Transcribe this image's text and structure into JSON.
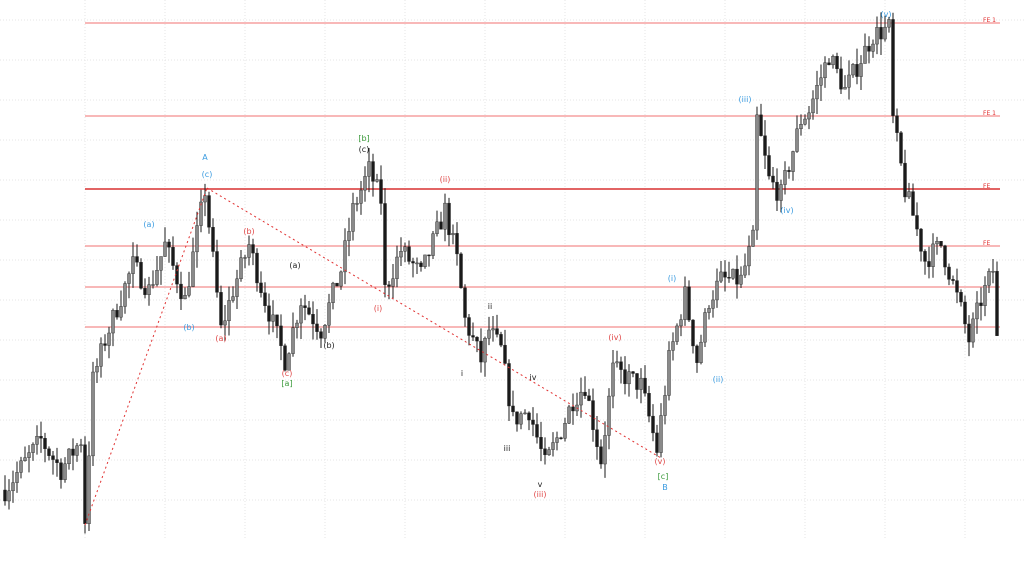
{
  "chart_data": {
    "type": "candlestick",
    "title": "",
    "xlabel": "",
    "ylabel": "",
    "grid": true,
    "colors": {
      "candle": "#1a1a1a",
      "candle_alt": "#8a8a8a",
      "levels": "#f07070",
      "main_level": "#d83030",
      "trendline": "#e03030"
    },
    "price_path": [
      [
        0,
        5.0
      ],
      [
        9,
        10.0
      ],
      [
        14,
        7.0
      ],
      [
        19,
        10.0
      ],
      [
        20,
        2.0
      ],
      [
        22,
        16.0
      ],
      [
        25,
        20.0
      ],
      [
        32,
        27.5
      ],
      [
        36,
        25.0
      ],
      [
        40,
        29.5
      ],
      [
        45,
        24.0
      ],
      [
        50,
        35.0
      ],
      [
        54,
        21.0
      ],
      [
        57,
        25.0
      ],
      [
        61,
        29.5
      ],
      [
        65,
        24.0
      ],
      [
        70,
        18.0
      ],
      [
        74,
        24.0
      ],
      [
        79,
        21.0
      ],
      [
        84,
        27.0
      ],
      [
        87,
        33.0
      ],
      [
        91,
        37.0
      ],
      [
        94,
        34.0
      ],
      [
        95,
        25.0
      ],
      [
        99,
        29.0
      ],
      [
        104,
        26.5
      ],
      [
        110,
        33.0
      ],
      [
        113,
        28.0
      ],
      [
        115,
        22.0
      ],
      [
        119,
        18.0
      ],
      [
        121,
        21.0
      ],
      [
        124,
        19.0
      ],
      [
        127,
        12.0
      ],
      [
        131,
        13.0
      ],
      [
        135,
        7.5
      ],
      [
        139,
        11.0
      ],
      [
        142,
        14.0
      ],
      [
        145,
        15.5
      ],
      [
        149,
        8.0
      ],
      [
        152,
        17.0
      ],
      [
        159,
        15.5
      ],
      [
        163,
        9.0
      ],
      [
        166,
        18.0
      ],
      [
        170,
        24.5
      ],
      [
        173,
        18.0
      ],
      [
        176,
        24.0
      ],
      [
        179,
        26.0
      ],
      [
        184,
        26.0
      ],
      [
        187,
        30.0
      ],
      [
        188,
        42.0
      ],
      [
        191,
        36.0
      ],
      [
        194,
        34.5
      ],
      [
        199,
        42.0
      ],
      [
        201,
        43.0
      ],
      [
        206,
        48.5
      ],
      [
        210,
        45.0
      ],
      [
        217,
        50.5
      ],
      [
        221,
        51.2
      ],
      [
        222,
        42.0
      ],
      [
        225,
        35.0
      ],
      [
        227,
        32.5
      ],
      [
        230,
        28.0
      ],
      [
        234,
        29.5
      ],
      [
        239,
        23.0
      ],
      [
        241,
        20.0
      ],
      [
        244,
        24.0
      ],
      [
        247,
        27.0
      ],
      [
        248,
        20.0
      ]
    ],
    "levels": [
      {
        "price": 51.7,
        "label": "FE 1",
        "main": false
      },
      {
        "price": 42.4,
        "label": "FE 1",
        "main": false
      },
      {
        "price": 35.1,
        "label": "FE",
        "main": true
      },
      {
        "price": 29.4,
        "label": "FE",
        "main": false
      },
      {
        "price": 25.3,
        "label": "",
        "main": false
      },
      {
        "price": 21.3,
        "label": "",
        "main": false
      }
    ],
    "trendlines": [
      {
        "from": [
          20,
          1.5
        ],
        "to": [
          50.5,
          35.2
        ]
      },
      {
        "from": [
          50.5,
          35.2
        ],
        "to": [
          164,
          8.2
        ]
      }
    ],
    "wave_labels": [
      {
        "text": "A",
        "bar": 50,
        "price": 38.0,
        "color": "#3a9be0"
      },
      {
        "text": "(c)",
        "bar": 50.5,
        "price": 36.3,
        "color": "#3a9be0"
      },
      {
        "text": "(a)",
        "bar": 36,
        "price": 31.3,
        "color": "#3a9be0"
      },
      {
        "text": "(b)",
        "bar": 46,
        "price": 21.0,
        "color": "#3a9be0"
      },
      {
        "text": "(a)",
        "bar": 54,
        "price": 19.9,
        "color": "#e04848"
      },
      {
        "text": "(b)",
        "bar": 61,
        "price": 30.6,
        "color": "#e04848"
      },
      {
        "text": "(a)",
        "bar": 72.5,
        "price": 27.2,
        "color": "#222222"
      },
      {
        "text": "(b)",
        "bar": 81,
        "price": 19.2,
        "color": "#222222"
      },
      {
        "text": "(c)",
        "bar": 70.5,
        "price": 16.4,
        "color": "#e04848"
      },
      {
        "text": "[a]",
        "bar": 70.5,
        "price": 15.4,
        "color": "#3a9a3a"
      },
      {
        "text": "[b]",
        "bar": 89.75,
        "price": 39.9,
        "color": "#3a9a3a"
      },
      {
        "text": "(c)",
        "bar": 89.75,
        "price": 38.8,
        "color": "#222222"
      },
      {
        "text": "(i)",
        "bar": 93.25,
        "price": 22.9,
        "color": "#e04848"
      },
      {
        "text": "(ii)",
        "bar": 110,
        "price": 35.8,
        "color": "#e04848"
      },
      {
        "text": "ii",
        "bar": 121.25,
        "price": 23.1,
        "color": "#222222"
      },
      {
        "text": "i",
        "bar": 114.25,
        "price": 16.4,
        "color": "#222222"
      },
      {
        "text": "iv",
        "bar": 132,
        "price": 16.0,
        "color": "#222222"
      },
      {
        "text": "iii",
        "bar": 125.5,
        "price": 8.9,
        "color": "#222222"
      },
      {
        "text": "v",
        "bar": 133.75,
        "price": 5.3,
        "color": "#222222"
      },
      {
        "text": "(iii)",
        "bar": 133.75,
        "price": 4.3,
        "color": "#e04848"
      },
      {
        "text": "(iv)",
        "bar": 152.5,
        "price": 20.0,
        "color": "#e04848"
      },
      {
        "text": "(v)",
        "bar": 163.75,
        "price": 7.6,
        "color": "#e04848"
      },
      {
        "text": "[c]",
        "bar": 164.5,
        "price": 6.1,
        "color": "#3a9a3a"
      },
      {
        "text": "B",
        "bar": 165,
        "price": 5.0,
        "color": "#3a9be0"
      },
      {
        "text": "(i)",
        "bar": 166.75,
        "price": 25.9,
        "color": "#3a9be0"
      },
      {
        "text": "(ii)",
        "bar": 178.25,
        "price": 15.8,
        "color": "#3a9be0"
      },
      {
        "text": "(iii)",
        "bar": 185,
        "price": 43.8,
        "color": "#3a9be0"
      },
      {
        "text": "(iv)",
        "bar": 195.5,
        "price": 32.7,
        "color": "#3a9be0"
      },
      {
        "text": "(v)",
        "bar": 220.25,
        "price": 52.3,
        "color": "#3a9be0"
      }
    ]
  }
}
